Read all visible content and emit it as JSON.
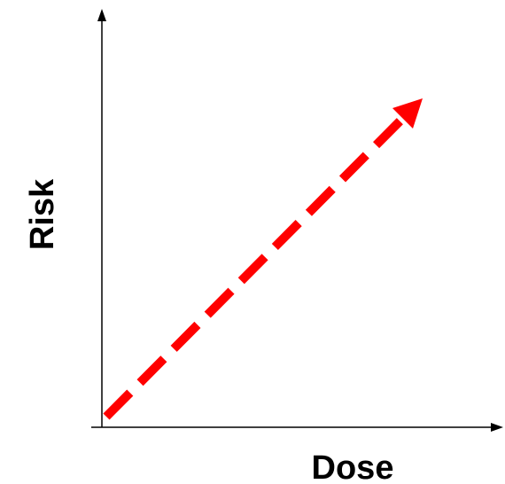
{
  "y_axis_label": "Risk",
  "x_axis_label": "Dose"
}
